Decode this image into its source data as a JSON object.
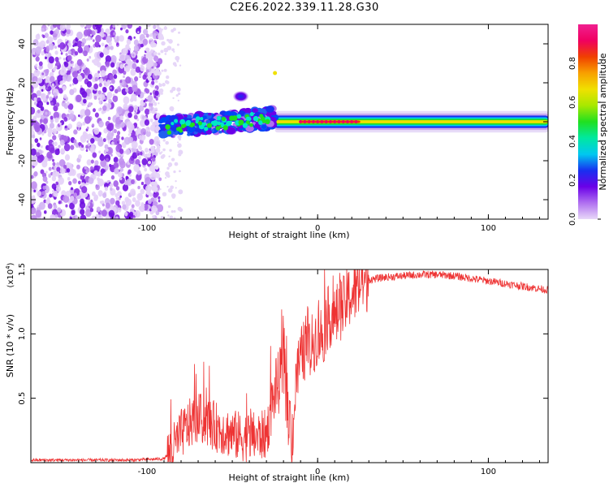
{
  "figure": {
    "title": "C2E6.2022.339.11.28.G30"
  },
  "chart_data": [
    {
      "type": "heatmap",
      "xlabel": "Height of straight line (km)",
      "ylabel": "Frequency (Hz)",
      "xlim": [
        -168,
        135
      ],
      "ylim": [
        -50,
        50
      ],
      "xticks": [
        -100,
        0,
        100
      ],
      "yticks": [
        -40,
        -20,
        0,
        20,
        40
      ],
      "colorbar": {
        "label": "Normalized spectral amplitude",
        "range": [
          0,
          1
        ],
        "ticks": [
          "0.0",
          "0.2",
          "0.4",
          "0.6",
          "0.8"
        ],
        "colors": [
          "#e8d8f8",
          "#b070f0",
          "#6a00e8",
          "#1830f0",
          "#00c8f0",
          "#00e8a0",
          "#20e020",
          "#a8e800",
          "#f0e000",
          "#f8a000",
          "#f04000",
          "#f00060",
          "#f02090"
        ]
      },
      "regions": [
        {
          "name": "noise",
          "x": [
            -168,
            -92
          ],
          "freq": [
            -50,
            50
          ],
          "amplitude": 0.15
        },
        {
          "name": "scattered-echo",
          "x": [
            -92,
            -25
          ],
          "freq_center": [
            -3,
            3
          ],
          "amplitude": 0.45
        },
        {
          "name": "steady-line",
          "x": [
            -25,
            135
          ],
          "freq_center": 0,
          "amplitude": 0.85
        },
        {
          "name": "outlier-blob",
          "x": [
            -48,
            -42
          ],
          "freq": [
            11,
            16
          ],
          "amplitude": 0.2
        }
      ]
    },
    {
      "type": "line",
      "xlabel": "Height of straight line (km)",
      "ylabel": "SNR (10 * v/v)",
      "scale_label": "(x10",
      "scale_exponent": "4",
      "scale_close": ")",
      "xlim": [
        -168,
        135
      ],
      "ylim": [
        0,
        1.5
      ],
      "xticks": [
        -100,
        0,
        100
      ],
      "yticks": [
        "0.5",
        "1.0",
        "1.5"
      ],
      "color": "#ee3333",
      "series": [
        {
          "x": [
            -168,
            -140,
            -110,
            -90,
            -85,
            -80,
            -75,
            -70,
            -65,
            -60,
            -55,
            -50,
            -45,
            -40,
            -35,
            -30,
            -25,
            -22,
            -20,
            -17,
            -15,
            -12,
            -10,
            -7,
            -5,
            -2,
            0,
            3,
            5,
            8,
            10,
            13,
            15,
            18,
            20,
            22,
            25,
            30,
            40,
            50,
            60,
            70,
            80,
            90,
            100,
            110,
            120,
            135
          ],
          "y": [
            0.02,
            0.02,
            0.02,
            0.03,
            0.1,
            0.22,
            0.3,
            0.35,
            0.32,
            0.28,
            0.25,
            0.22,
            0.2,
            0.2,
            0.2,
            0.22,
            0.55,
            0.65,
            0.75,
            0.35,
            0.2,
            0.7,
            0.8,
            0.9,
            0.85,
            0.95,
            1.0,
            0.98,
            1.1,
            1.15,
            1.1,
            1.2,
            1.2,
            1.28,
            1.3,
            1.33,
            1.38,
            1.42,
            1.44,
            1.45,
            1.46,
            1.46,
            1.45,
            1.43,
            1.41,
            1.39,
            1.37,
            1.34
          ]
        }
      ]
    }
  ]
}
